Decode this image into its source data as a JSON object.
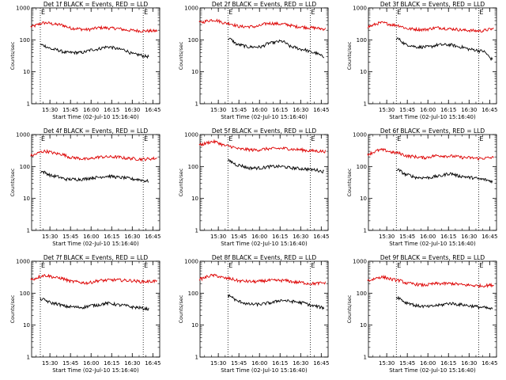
{
  "chart_data": [
    {
      "type": "line",
      "title": "Det 1f BLACK = Events, RED = LLD",
      "xlabel": "Start Time (02-Jul-10 15:16:40)",
      "ylabel": "Counts/sec",
      "yscale": "log",
      "ylim": [
        1,
        1000
      ],
      "y_ticks": [
        "1",
        "10",
        "100",
        "1000"
      ],
      "x_ticks": [
        "15:30",
        "15:45",
        "16:00",
        "16:15",
        "16:30",
        "16:45"
      ],
      "xlim": [
        "15:16:40",
        "16:50"
      ],
      "markers": [
        {
          "time": "15:23",
          "label": "E"
        },
        {
          "time": "16:38",
          "label": "E"
        }
      ],
      "series": [
        {
          "name": "LLD",
          "color": "#dd0000",
          "start": "15:16",
          "end": "16:48",
          "points": [
            260,
            340,
            300,
            230,
            210,
            240,
            230,
            200,
            190,
            190
          ]
        },
        {
          "name": "Events",
          "color": "#000000",
          "start": "15:23",
          "end": "16:42",
          "points": [
            70,
            50,
            40,
            40,
            50,
            60,
            50,
            35,
            30
          ]
        }
      ]
    },
    {
      "type": "line",
      "title": "Det 2f BLACK = Events, RED = LLD",
      "xlabel": "Start Time (02-Jul-10 15:16:40)",
      "ylabel": "Counts/sec",
      "yscale": "log",
      "ylim": [
        1,
        1000
      ],
      "y_ticks": [
        "1",
        "10",
        "100",
        "1000"
      ],
      "x_ticks": [
        "15:30",
        "15:45",
        "16:00",
        "16:15",
        "16:30",
        "16:45"
      ],
      "xlim": [
        "15:16:40",
        "16:50"
      ],
      "markers": [
        {
          "time": "15:37",
          "label": "E"
        },
        {
          "time": "16:37",
          "label": "E"
        }
      ],
      "series": [
        {
          "name": "LLD",
          "color": "#dd0000",
          "start": "15:16",
          "end": "16:48",
          "points": [
            350,
            420,
            330,
            260,
            260,
            330,
            310,
            260,
            240,
            220
          ]
        },
        {
          "name": "Events",
          "color": "#000000",
          "start": "15:37",
          "end": "16:47",
          "points": [
            110,
            70,
            60,
            60,
            80,
            90,
            60,
            50,
            40,
            30
          ]
        }
      ]
    },
    {
      "type": "line",
      "title": "Det 3f BLACK = Events, RED = LLD",
      "xlabel": "Start Time (02-Jul-10 15:16:40)",
      "ylabel": "Counts/sec",
      "yscale": "log",
      "ylim": [
        1,
        1000
      ],
      "y_ticks": [
        "1",
        "10",
        "100",
        "1000"
      ],
      "x_ticks": [
        "15:30",
        "15:45",
        "16:00",
        "16:15",
        "16:30",
        "16:45"
      ],
      "xlim": [
        "15:16:40",
        "16:50"
      ],
      "markers": [
        {
          "time": "15:37",
          "label": "E"
        },
        {
          "time": "16:37",
          "label": "E"
        }
      ],
      "series": [
        {
          "name": "LLD",
          "color": "#dd0000",
          "start": "15:16",
          "end": "16:48",
          "points": [
            260,
            340,
            290,
            220,
            210,
            240,
            220,
            200,
            190,
            220
          ]
        },
        {
          "name": "Events",
          "color": "#000000",
          "start": "15:37",
          "end": "16:47",
          "points": [
            110,
            70,
            60,
            60,
            70,
            70,
            60,
            50,
            45,
            25
          ]
        }
      ]
    },
    {
      "type": "line",
      "title": "Det 4f BLACK = Events, RED = LLD",
      "xlabel": "Start Time (02-Jul-10 15:16:40)",
      "ylabel": "Counts/sec",
      "yscale": "log",
      "ylim": [
        1,
        1000
      ],
      "y_ticks": [
        "1",
        "10",
        "100",
        "1000"
      ],
      "x_ticks": [
        "15:30",
        "15:45",
        "16:00",
        "16:15",
        "16:30",
        "16:45"
      ],
      "xlim": [
        "15:16:40",
        "16:50"
      ],
      "markers": [
        {
          "time": "15:23",
          "label": "E"
        },
        {
          "time": "16:38",
          "label": "E"
        }
      ],
      "series": [
        {
          "name": "LLD",
          "color": "#dd0000",
          "start": "15:16",
          "end": "16:48",
          "points": [
            220,
            300,
            250,
            190,
            170,
            200,
            200,
            180,
            170,
            180
          ]
        },
        {
          "name": "Events",
          "color": "#000000",
          "start": "15:23",
          "end": "16:42",
          "points": [
            70,
            50,
            40,
            40,
            45,
            50,
            45,
            40,
            35
          ]
        }
      ]
    },
    {
      "type": "line",
      "title": "Det 5f BLACK = Events, RED = LLD",
      "xlabel": "Start Time (02-Jul-10 15:16:40)",
      "ylabel": "Counts/sec",
      "yscale": "log",
      "ylim": [
        1,
        1000
      ],
      "y_ticks": [
        "1",
        "10",
        "100",
        "1000"
      ],
      "x_ticks": [
        "15:30",
        "15:45",
        "16:00",
        "16:15",
        "16:30",
        "16:45"
      ],
      "xlim": [
        "15:16:40",
        "16:50"
      ],
      "markers": [
        {
          "time": "15:37",
          "label": "E"
        },
        {
          "time": "16:37",
          "label": "E"
        }
      ],
      "series": [
        {
          "name": "LLD",
          "color": "#dd0000",
          "start": "15:16",
          "end": "16:48",
          "points": [
            480,
            600,
            440,
            350,
            330,
            360,
            370,
            340,
            310,
            300
          ]
        },
        {
          "name": "Events",
          "color": "#000000",
          "start": "15:37",
          "end": "16:47",
          "points": [
            150,
            110,
            90,
            90,
            100,
            100,
            90,
            85,
            80,
            70
          ]
        }
      ]
    },
    {
      "type": "line",
      "title": "Det 6f BLACK = Events, RED = LLD",
      "xlabel": "Start Time (02-Jul-10 15:16:40)",
      "ylabel": "Counts/sec",
      "yscale": "log",
      "ylim": [
        1,
        1000
      ],
      "y_ticks": [
        "1",
        "10",
        "100",
        "1000"
      ],
      "x_ticks": [
        "15:30",
        "15:45",
        "16:00",
        "16:15",
        "16:30",
        "16:45"
      ],
      "xlim": [
        "15:16:40",
        "16:50"
      ],
      "markers": [
        {
          "time": "15:37",
          "label": "E"
        },
        {
          "time": "16:37",
          "label": "E"
        }
      ],
      "series": [
        {
          "name": "LLD",
          "color": "#dd0000",
          "start": "15:16",
          "end": "16:48",
          "points": [
            250,
            330,
            270,
            210,
            190,
            220,
            210,
            190,
            180,
            190
          ]
        },
        {
          "name": "Events",
          "color": "#000000",
          "start": "15:37",
          "end": "16:47",
          "points": [
            80,
            55,
            45,
            45,
            50,
            60,
            50,
            45,
            40,
            35
          ]
        }
      ]
    },
    {
      "type": "line",
      "title": "Det 7f BLACK = Events, RED = LLD",
      "xlabel": "Start Time (02-Jul-10 15:16:40)",
      "ylabel": "Counts/sec",
      "yscale": "log",
      "ylim": [
        1,
        1000
      ],
      "y_ticks": [
        "1",
        "10",
        "100",
        "1000"
      ],
      "x_ticks": [
        "15:30",
        "15:45",
        "16:00",
        "16:15",
        "16:30",
        "16:45"
      ],
      "xlim": [
        "15:16:40",
        "16:50"
      ],
      "markers": [
        {
          "time": "15:23",
          "label": "E"
        },
        {
          "time": "16:38",
          "label": "E"
        }
      ],
      "series": [
        {
          "name": "LLD",
          "color": "#dd0000",
          "start": "15:16",
          "end": "16:48",
          "points": [
            270,
            360,
            300,
            230,
            210,
            250,
            260,
            250,
            230,
            240
          ]
        },
        {
          "name": "Events",
          "color": "#000000",
          "start": "15:23",
          "end": "16:42",
          "points": [
            65,
            48,
            38,
            36,
            42,
            48,
            42,
            36,
            32
          ]
        }
      ]
    },
    {
      "type": "line",
      "title": "Det 8f BLACK = Events, RED = LLD",
      "xlabel": "Start Time (02-Jul-10 15:16:40)",
      "ylabel": "Counts/sec",
      "yscale": "log",
      "ylim": [
        1,
        1000
      ],
      "y_ticks": [
        "1",
        "10",
        "100",
        "1000"
      ],
      "x_ticks": [
        "15:30",
        "15:45",
        "16:00",
        "16:15",
        "16:30",
        "16:45"
      ],
      "xlim": [
        "15:16:40",
        "16:50"
      ],
      "markers": [
        {
          "time": "15:37",
          "label": "E"
        },
        {
          "time": "16:37",
          "label": "E"
        }
      ],
      "series": [
        {
          "name": "LLD",
          "color": "#dd0000",
          "start": "15:16",
          "end": "16:48",
          "points": [
            280,
            360,
            290,
            240,
            230,
            250,
            250,
            220,
            200,
            210
          ]
        },
        {
          "name": "Events",
          "color": "#000000",
          "start": "15:37",
          "end": "16:47",
          "points": [
            85,
            55,
            45,
            45,
            50,
            60,
            55,
            50,
            40,
            35
          ]
        }
      ]
    },
    {
      "type": "line",
      "title": "Det 9f BLACK = Events, RED = LLD",
      "xlabel": "Start Time (02-Jul-10 15:16:40)",
      "ylabel": "Counts/sec",
      "yscale": "log",
      "ylim": [
        1,
        1000
      ],
      "y_ticks": [
        "1",
        "10",
        "100",
        "1000"
      ],
      "x_ticks": [
        "15:30",
        "15:45",
        "16:00",
        "16:15",
        "16:30",
        "16:45"
      ],
      "xlim": [
        "15:16:40",
        "16:50"
      ],
      "markers": [
        {
          "time": "15:37",
          "label": "E"
        },
        {
          "time": "16:37",
          "label": "E"
        }
      ],
      "series": [
        {
          "name": "LLD",
          "color": "#dd0000",
          "start": "15:16",
          "end": "16:48",
          "points": [
            250,
            320,
            260,
            200,
            180,
            200,
            200,
            180,
            170,
            180
          ]
        },
        {
          "name": "Events",
          "color": "#000000",
          "start": "15:37",
          "end": "16:47",
          "points": [
            75,
            50,
            40,
            38,
            42,
            48,
            44,
            40,
            36,
            32
          ]
        }
      ]
    }
  ]
}
